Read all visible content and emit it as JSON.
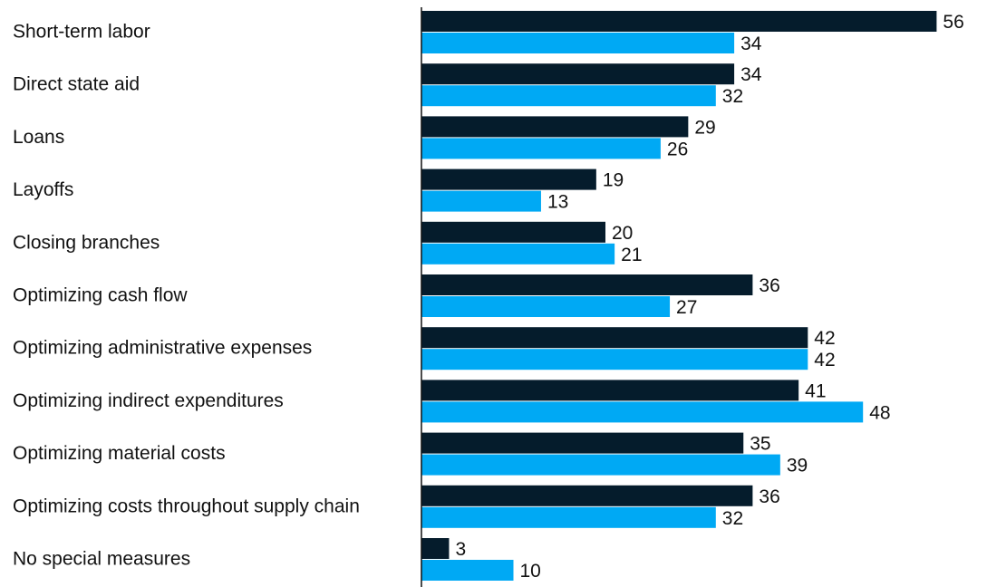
{
  "chart_data": {
    "type": "bar",
    "orientation": "horizontal",
    "categories": [
      "Short-term labor",
      "Direct state aid",
      "Loans",
      "Layoffs",
      "Closing branches",
      "Optimizing cash flow",
      "Optimizing administrative expenses",
      "Optimizing indirect expenditures",
      "Optimizing material costs",
      "Optimizing costs throughout supply chain",
      "No special measures"
    ],
    "series": [
      {
        "values": [
          56,
          34,
          29,
          19,
          20,
          36,
          42,
          41,
          35,
          36,
          3
        ],
        "color": "#051c2c"
      },
      {
        "values": [
          34,
          32,
          26,
          13,
          21,
          27,
          42,
          48,
          39,
          32,
          10
        ],
        "color": "#00a9f4"
      }
    ],
    "xlim": [
      0,
      60
    ],
    "grid": false,
    "legend": "none"
  }
}
